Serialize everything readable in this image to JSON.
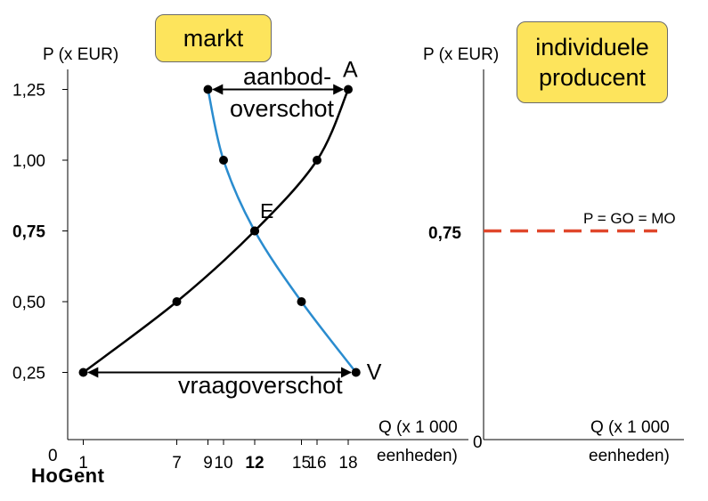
{
  "boxes": {
    "market": "markt",
    "individual_line1": "individuele",
    "individual_line2": "producent"
  },
  "logo": "HoGent",
  "colors": {
    "supply": "#000000",
    "demand": "#2a8ccf",
    "individual_price": "#e0472b",
    "label_box": "#fde45c"
  },
  "chart_data": [
    {
      "type": "line",
      "panel": "markt",
      "ylabel": "P (x EUR)",
      "xlabel_line1": "Q (x 1 000",
      "xlabel_line2": "eenheden)",
      "origin_label": "0",
      "xlim": [
        0,
        18
      ],
      "ylim": [
        0,
        1.25
      ],
      "y_ticks": [
        {
          "value": 0.25,
          "label": "0,25",
          "bold": false
        },
        {
          "value": 0.5,
          "label": "0,50",
          "bold": false
        },
        {
          "value": 0.75,
          "label": "0,75",
          "bold": true
        },
        {
          "value": 1.0,
          "label": "1,00",
          "bold": false
        },
        {
          "value": 1.25,
          "label": "1,25",
          "bold": false
        }
      ],
      "x_ticks": [
        {
          "value": 1,
          "label": "1",
          "bold": false
        },
        {
          "value": 7,
          "label": "7",
          "bold": false
        },
        {
          "value": 9,
          "label": "9",
          "bold": false
        },
        {
          "value": 10,
          "label": "10",
          "bold": false
        },
        {
          "value": 12,
          "label": "12",
          "bold": true
        },
        {
          "value": 15,
          "label": "15",
          "bold": false
        },
        {
          "value": 16,
          "label": "16",
          "bold": false
        },
        {
          "value": 18,
          "label": "18",
          "bold": false
        }
      ],
      "series": [
        {
          "name": "A",
          "role": "supply",
          "points": [
            [
              1,
              0.25
            ],
            [
              7,
              0.5
            ],
            [
              12,
              0.75
            ],
            [
              16,
              1.0
            ],
            [
              18,
              1.25
            ]
          ]
        },
        {
          "name": "V",
          "role": "demand",
          "points": [
            [
              9,
              1.25
            ],
            [
              10,
              1.0
            ],
            [
              12,
              0.75
            ],
            [
              15,
              0.5
            ],
            [
              18.5,
              0.25
            ]
          ]
        }
      ],
      "annotations": [
        {
          "text": "E",
          "x": 12,
          "y": 0.75
        },
        {
          "text": "aanbod-",
          "x": 13.4,
          "y": 1.25
        },
        {
          "text": "overschot",
          "x": 13.4,
          "y": 1.1
        },
        {
          "text": "vraagoverschot",
          "x": 11.2,
          "y": 0.2
        }
      ],
      "arrows": [
        {
          "from": [
            9,
            1.25
          ],
          "to": [
            18,
            1.25
          ],
          "label": "aanbodoverschot"
        },
        {
          "from": [
            1,
            0.25
          ],
          "to": [
            18.5,
            0.25
          ],
          "label": "vraagoverschot"
        }
      ]
    },
    {
      "type": "line",
      "panel": "individuele producent",
      "ylabel": "P (x EUR)",
      "xlabel_line1": "Q (x 1 000",
      "xlabel_line2": "eenheden)",
      "origin_label": "0",
      "ylim": [
        0,
        1.25
      ],
      "y_ticks": [
        {
          "value": 0.75,
          "label": "0,75",
          "bold": true
        }
      ],
      "series": [
        {
          "name": "P = GO = MO",
          "style": "dashed",
          "y": 0.75
        }
      ]
    }
  ]
}
